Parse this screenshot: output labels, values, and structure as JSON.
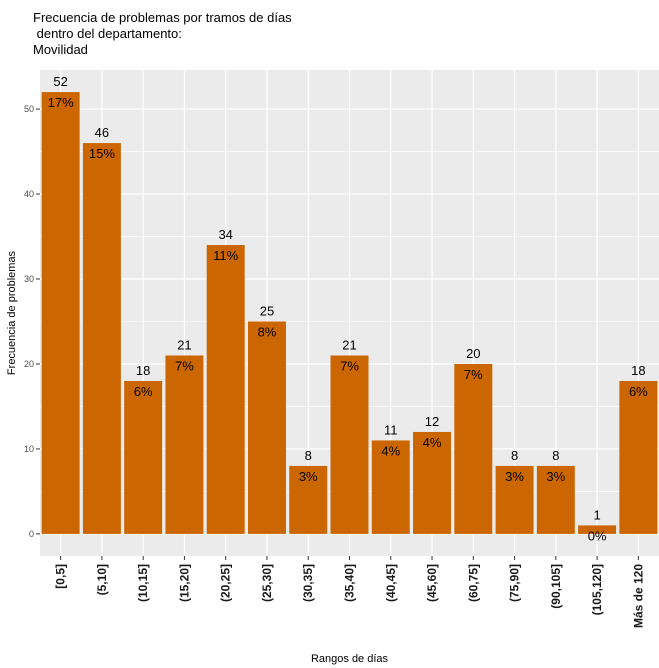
{
  "chart_data": {
    "type": "bar",
    "title_lines": [
      "Frecuencia de problemas por tramos de días",
      " dentro del departamento:",
      "Movilidad"
    ],
    "xlabel": "Rangos de días",
    "ylabel": "Frecuencia de problemas",
    "categories": [
      "[0,5]",
      "(5,10]",
      "(10,15]",
      "(15,20]",
      "(20,25]",
      "(25,30]",
      "(30,35]",
      "(35,40]",
      "(40,45]",
      "(45,60]",
      "(60,75]",
      "(75,90]",
      "(90,105]",
      "(105,120]",
      "Más de 120"
    ],
    "values": [
      52,
      46,
      18,
      21,
      34,
      25,
      8,
      21,
      11,
      12,
      20,
      8,
      8,
      1,
      18
    ],
    "percent_labels": [
      "17%",
      "15%",
      "6%",
      "7%",
      "11%",
      "8%",
      "3%",
      "7%",
      "4%",
      "4%",
      "7%",
      "3%",
      "3%",
      "0%",
      "6%"
    ],
    "yticks": [
      0,
      10,
      20,
      30,
      40,
      50
    ],
    "ylim": [
      -2.6,
      54.6
    ],
    "bar_color": "#CC6600",
    "panel_color": "#EBEBEB",
    "grid": true,
    "legend": "none"
  }
}
